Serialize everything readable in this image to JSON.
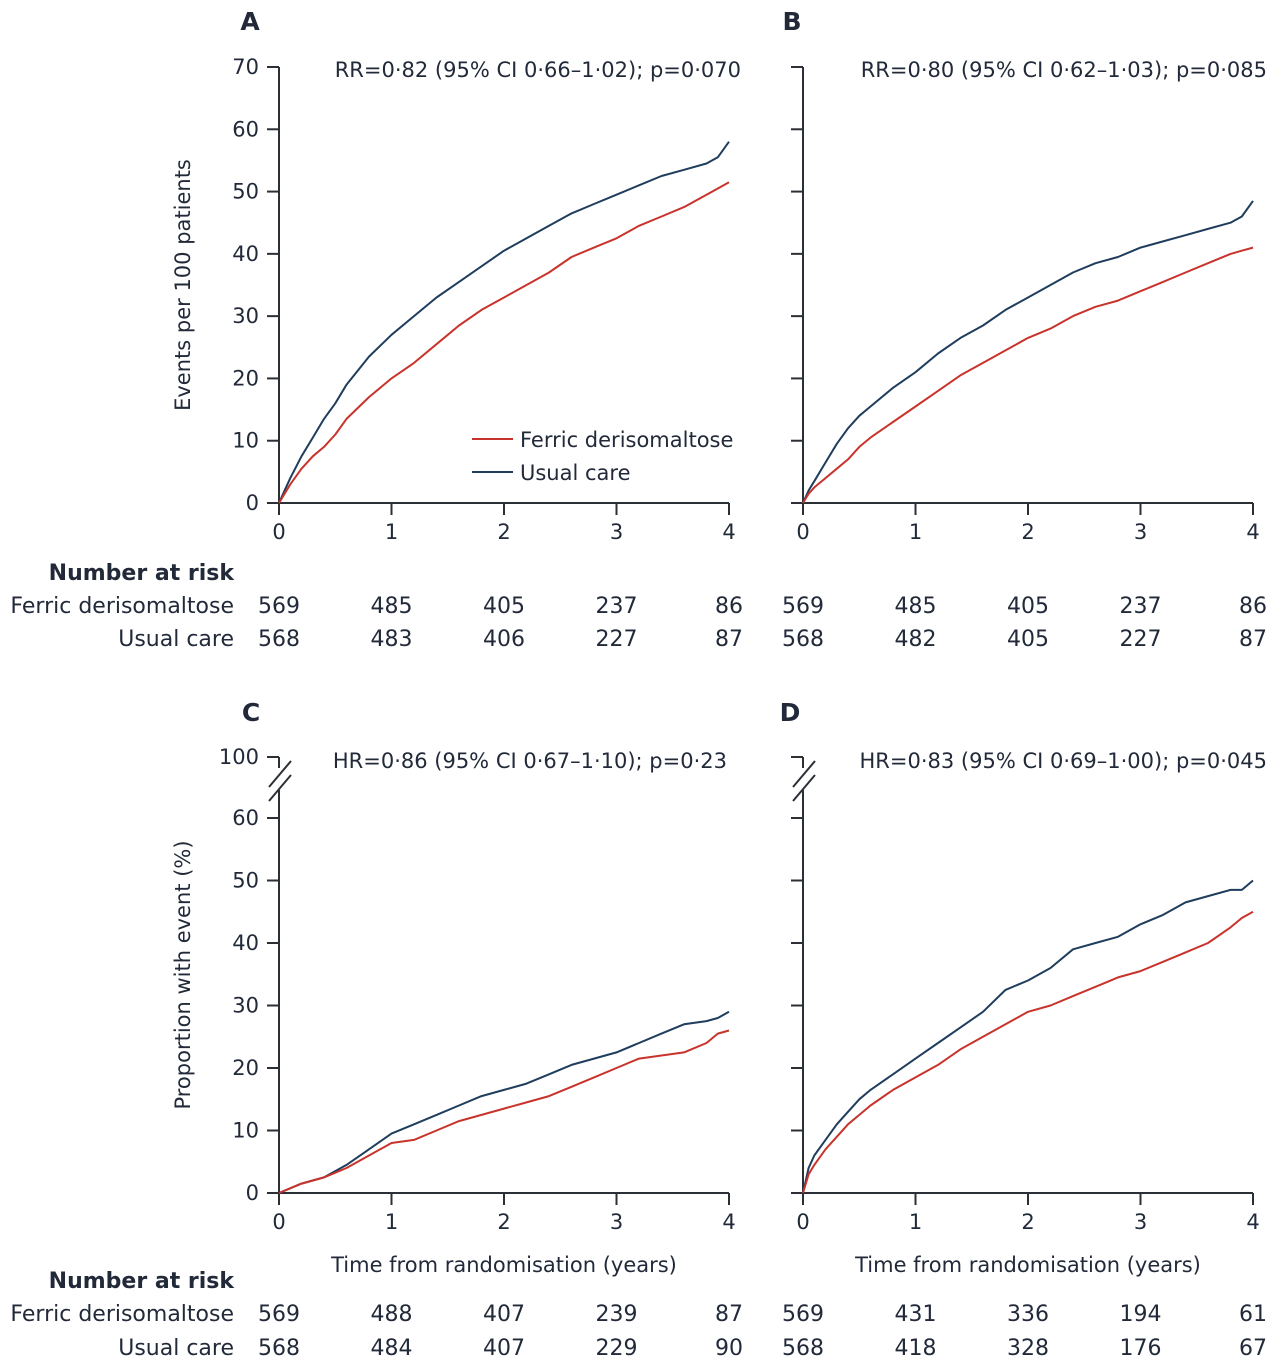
{
  "colors": {
    "ferric": "#c8332b",
    "usual": "#1f3d5c",
    "axis": "#2b2f36",
    "text": "#222a3a"
  },
  "legend": {
    "ferric": "Ferric derisomaltose",
    "usual": "Usual care"
  },
  "axis_titles": {
    "top_y": "Events per 100 patients",
    "bottom_y": "Proportion with event (%)",
    "x": "Time from randomisation (years)"
  },
  "risk_labels": {
    "header": "Number at risk",
    "ferric": "Ferric derisomaltose",
    "usual": "Usual care"
  },
  "panels": [
    {
      "letter": "A",
      "stat": "RR=0·82 (95% CI 0·66–1·02); p=0·070",
      "risk": {
        "ferric": [
          "569",
          "485",
          "405",
          "237",
          "86"
        ],
        "usual": [
          "568",
          "483",
          "406",
          "227",
          "87"
        ]
      }
    },
    {
      "letter": "B",
      "stat": "RR=0·80 (95% CI 0·62–1·03); p=0·085",
      "risk": {
        "ferric": [
          "569",
          "485",
          "405",
          "237",
          "86"
        ],
        "usual": [
          "568",
          "482",
          "405",
          "227",
          "87"
        ]
      }
    },
    {
      "letter": "C",
      "stat": "HR=0·86 (95% CI 0·67–1·10); p=0·23",
      "risk": {
        "ferric": [
          "569",
          "488",
          "407",
          "239",
          "87"
        ],
        "usual": [
          "568",
          "484",
          "407",
          "229",
          "90"
        ]
      }
    },
    {
      "letter": "D",
      "stat": "HR=0·83 (95% CI 0·69–1·00); p=0·045",
      "risk": {
        "ferric": [
          "569",
          "431",
          "336",
          "194",
          "61"
        ],
        "usual": [
          "568",
          "418",
          "328",
          "176",
          "67"
        ]
      }
    }
  ],
  "chart_data": [
    {
      "panel": "A",
      "type": "line",
      "xlabel": "",
      "ylabel": "Events per 100 patients",
      "xlim": [
        0,
        4
      ],
      "ylim": [
        0,
        70
      ],
      "x_ticks": [
        "0",
        "1",
        "2",
        "3",
        "4"
      ],
      "y_ticks": [
        "0",
        "10",
        "20",
        "30",
        "40",
        "50",
        "60",
        "70"
      ],
      "series": [
        {
          "name": "Ferric derisomaltose",
          "x": [
            0,
            0.05,
            0.1,
            0.2,
            0.3,
            0.4,
            0.5,
            0.6,
            0.8,
            1.0,
            1.2,
            1.4,
            1.6,
            1.8,
            2.0,
            2.2,
            2.4,
            2.6,
            2.8,
            3.0,
            3.2,
            3.4,
            3.6,
            3.8,
            3.9,
            4.0
          ],
          "y": [
            0,
            1.5,
            3,
            5.5,
            7.5,
            9,
            11,
            13.5,
            17,
            20,
            22.5,
            25.5,
            28.5,
            31,
            33,
            35,
            37,
            39.5,
            41,
            42.5,
            44.5,
            46,
            47.5,
            49.5,
            50.5,
            51.5
          ]
        },
        {
          "name": "Usual care",
          "x": [
            0,
            0.05,
            0.1,
            0.2,
            0.3,
            0.4,
            0.5,
            0.6,
            0.8,
            1.0,
            1.2,
            1.4,
            1.6,
            1.8,
            2.0,
            2.2,
            2.4,
            2.6,
            2.8,
            3.0,
            3.2,
            3.4,
            3.6,
            3.8,
            3.9,
            4.0
          ],
          "y": [
            0,
            2,
            4,
            7.5,
            10.5,
            13.5,
            16,
            19,
            23.5,
            27,
            30,
            33,
            35.5,
            38,
            40.5,
            42.5,
            44.5,
            46.5,
            48,
            49.5,
            51,
            52.5,
            53.5,
            54.5,
            55.5,
            58
          ]
        }
      ]
    },
    {
      "panel": "B",
      "type": "line",
      "xlabel": "",
      "ylabel": "",
      "xlim": [
        0,
        4
      ],
      "ylim": [
        0,
        70
      ],
      "x_ticks": [
        "0",
        "1",
        "2",
        "3",
        "4"
      ],
      "y_ticks": [
        "",
        "",
        "",
        "",
        "",
        "",
        "",
        ""
      ],
      "series": [
        {
          "name": "Ferric derisomaltose",
          "x": [
            0,
            0.05,
            0.1,
            0.2,
            0.3,
            0.4,
            0.5,
            0.6,
            0.8,
            1.0,
            1.2,
            1.4,
            1.6,
            1.8,
            2.0,
            2.2,
            2.4,
            2.6,
            2.8,
            3.0,
            3.2,
            3.4,
            3.6,
            3.8,
            3.9,
            4.0
          ],
          "y": [
            0,
            1.5,
            2.5,
            4,
            5.5,
            7,
            9,
            10.5,
            13,
            15.5,
            18,
            20.5,
            22.5,
            24.5,
            26.5,
            28,
            30,
            31.5,
            32.5,
            34,
            35.5,
            37,
            38.5,
            40,
            40.5,
            41
          ]
        },
        {
          "name": "Usual care",
          "x": [
            0,
            0.05,
            0.1,
            0.2,
            0.3,
            0.4,
            0.5,
            0.6,
            0.8,
            1.0,
            1.2,
            1.4,
            1.6,
            1.8,
            2.0,
            2.2,
            2.4,
            2.6,
            2.8,
            3.0,
            3.2,
            3.4,
            3.6,
            3.8,
            3.9,
            4.0
          ],
          "y": [
            0,
            2,
            3.5,
            6.5,
            9.5,
            12,
            14,
            15.5,
            18.5,
            21,
            24,
            26.5,
            28.5,
            31,
            33,
            35,
            37,
            38.5,
            39.5,
            41,
            42,
            43,
            44,
            45,
            46,
            48.5
          ]
        }
      ]
    },
    {
      "panel": "C",
      "type": "line",
      "xlabel": "Time from randomisation (years)",
      "ylabel": "Proportion with event (%)",
      "xlim": [
        0,
        4
      ],
      "ylim": [
        0,
        100
      ],
      "y_axis_break": [
        60,
        100
      ],
      "x_ticks": [
        "0",
        "1",
        "2",
        "3",
        "4"
      ],
      "y_ticks": [
        "0",
        "10",
        "20",
        "30",
        "40",
        "50",
        "60",
        "100"
      ],
      "series": [
        {
          "name": "Ferric derisomaltose",
          "x": [
            0,
            0.2,
            0.4,
            0.6,
            0.8,
            1.0,
            1.2,
            1.4,
            1.6,
            1.8,
            2.0,
            2.2,
            2.4,
            2.6,
            2.8,
            3.0,
            3.2,
            3.4,
            3.6,
            3.8,
            3.9,
            4.0
          ],
          "y": [
            0,
            1.5,
            2.5,
            4,
            6,
            8,
            8.5,
            10,
            11.5,
            12.5,
            13.5,
            14.5,
            15.5,
            17,
            18.5,
            20,
            21.5,
            22,
            22.5,
            24,
            25.5,
            26
          ]
        },
        {
          "name": "Usual care",
          "x": [
            0,
            0.2,
            0.4,
            0.6,
            0.8,
            1.0,
            1.2,
            1.4,
            1.6,
            1.8,
            2.0,
            2.2,
            2.4,
            2.6,
            2.8,
            3.0,
            3.2,
            3.4,
            3.6,
            3.8,
            3.9,
            4.0
          ],
          "y": [
            0,
            1.5,
            2.5,
            4.5,
            7,
            9.5,
            11,
            12.5,
            14,
            15.5,
            16.5,
            17.5,
            19,
            20.5,
            21.5,
            22.5,
            24,
            25.5,
            27,
            27.5,
            28,
            29
          ]
        }
      ]
    },
    {
      "panel": "D",
      "type": "line",
      "xlabel": "Time from randomisation (years)",
      "ylabel": "",
      "xlim": [
        0,
        4
      ],
      "ylim": [
        0,
        100
      ],
      "y_axis_break": [
        60,
        100
      ],
      "x_ticks": [
        "0",
        "1",
        "2",
        "3",
        "4"
      ],
      "y_ticks": [
        "",
        "",
        "",
        "",
        "",
        "",
        "",
        ""
      ],
      "series": [
        {
          "name": "Ferric derisomaltose",
          "x": [
            0,
            0.05,
            0.1,
            0.2,
            0.3,
            0.4,
            0.5,
            0.6,
            0.8,
            1.0,
            1.2,
            1.4,
            1.6,
            1.8,
            2.0,
            2.2,
            2.4,
            2.6,
            2.8,
            3.0,
            3.2,
            3.4,
            3.6,
            3.8,
            3.9,
            4.0
          ],
          "y": [
            0,
            3,
            4.5,
            7,
            9,
            11,
            12.5,
            14,
            16.5,
            18.5,
            20.5,
            23,
            25,
            27,
            29,
            30,
            31.5,
            33,
            34.5,
            35.5,
            37,
            38.5,
            40,
            42.5,
            44,
            45
          ]
        },
        {
          "name": "Usual care",
          "x": [
            0,
            0.05,
            0.1,
            0.2,
            0.3,
            0.4,
            0.5,
            0.6,
            0.8,
            1.0,
            1.2,
            1.4,
            1.6,
            1.8,
            2.0,
            2.2,
            2.4,
            2.6,
            2.8,
            3.0,
            3.2,
            3.4,
            3.6,
            3.8,
            3.9,
            4.0
          ],
          "y": [
            0,
            4,
            6,
            8.5,
            11,
            13,
            15,
            16.5,
            19,
            21.5,
            24,
            26.5,
            29,
            32.5,
            34,
            36,
            39,
            40,
            41,
            43,
            44.5,
            46.5,
            47.5,
            48.5,
            48.5,
            50
          ]
        }
      ]
    }
  ]
}
